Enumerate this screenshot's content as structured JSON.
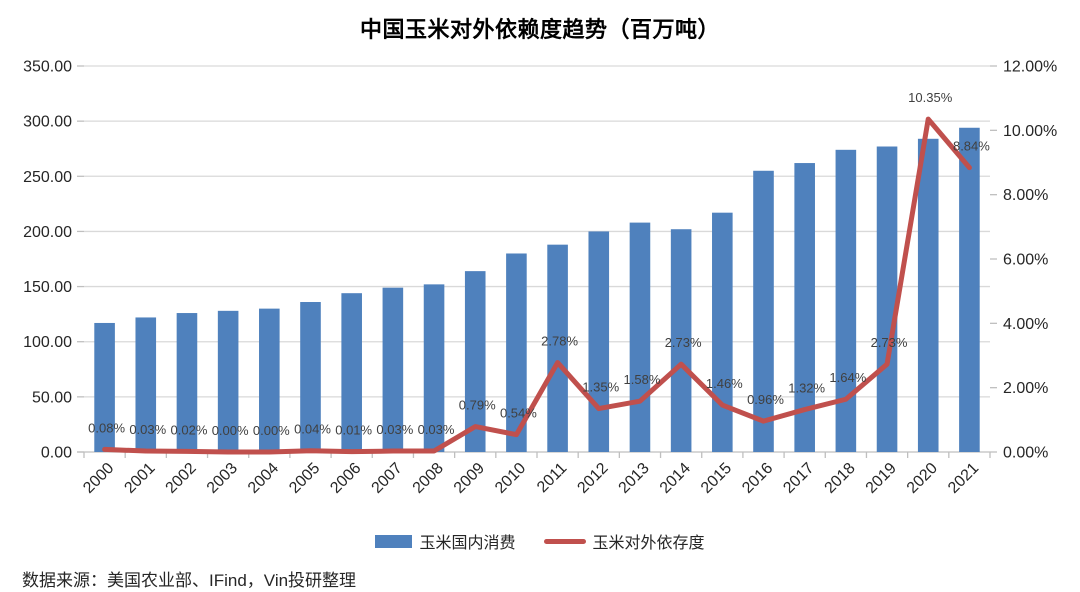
{
  "title": "中国玉米对外依赖度趋势（百万吨）",
  "source_note": "数据来源：美国农业部、IFind，Vin投研整理",
  "legend": {
    "items": [
      {
        "label": "玉米国内消费",
        "marker": "bar-swatch",
        "color": "#4F81BD"
      },
      {
        "label": "玉米对外依存度",
        "marker": "line-swatch",
        "color": "#C0504D"
      }
    ]
  },
  "colors": {
    "bar": "#4F81BD",
    "line": "#C0504D",
    "gridline": "#D9D9D9",
    "axis_line": "#BFBFBF",
    "data_label_text": "#404040",
    "axis_text": "#262626"
  },
  "chart_data": {
    "type": "combo-bar-line",
    "title": "中国玉米对外依赖度趋势（百万吨）",
    "grid": true,
    "legend_position": "bottom",
    "categories": [
      "2000",
      "2001",
      "2002",
      "2003",
      "2004",
      "2005",
      "2006",
      "2007",
      "2008",
      "2009",
      "2010",
      "2011",
      "2012",
      "2013",
      "2014",
      "2015",
      "2016",
      "2017",
      "2018",
      "2019",
      "2020",
      "2021"
    ],
    "series": [
      {
        "name": "玉米国内消费",
        "type": "bar",
        "axis": "left",
        "color": "#4F81BD",
        "values": [
          117,
          122,
          126,
          128,
          130,
          136,
          144,
          149,
          152,
          164,
          180,
          188,
          200,
          208,
          202,
          217,
          255,
          262,
          274,
          277,
          284,
          294
        ]
      },
      {
        "name": "玉米对外依存度",
        "type": "line",
        "axis": "right",
        "color": "#C0504D",
        "values": [
          0.08,
          0.03,
          0.02,
          0.0,
          0.0,
          0.04,
          0.01,
          0.03,
          0.03,
          0.79,
          0.54,
          2.78,
          1.35,
          1.58,
          2.73,
          1.46,
          0.96,
          1.32,
          1.64,
          2.73,
          10.35,
          8.84
        ],
        "point_labels": [
          "0.08%",
          "0.03%",
          "0.02%",
          "0.00%",
          "0.00%",
          "0.04%",
          "0.01%",
          "0.03%",
          "0.03%",
          "0.79%",
          "0.54%",
          "2.78%",
          "1.35%",
          "1.58%",
          "2.73%",
          "1.46%",
          "0.96%",
          "1.32%",
          "1.64%",
          "2.73%",
          "10.35%",
          "8.84%"
        ]
      }
    ],
    "left_axis": {
      "min": 0,
      "max": 350,
      "step": 50,
      "tick_labels": [
        "0.00",
        "50.00",
        "100.00",
        "150.00",
        "200.00",
        "250.00",
        "300.00",
        "350.00"
      ]
    },
    "right_axis": {
      "min": 0,
      "max": 12,
      "step": 2,
      "tick_labels": [
        "0.00%",
        "2.00%",
        "4.00%",
        "6.00%",
        "8.00%",
        "10.00%",
        "12.00%"
      ]
    }
  }
}
